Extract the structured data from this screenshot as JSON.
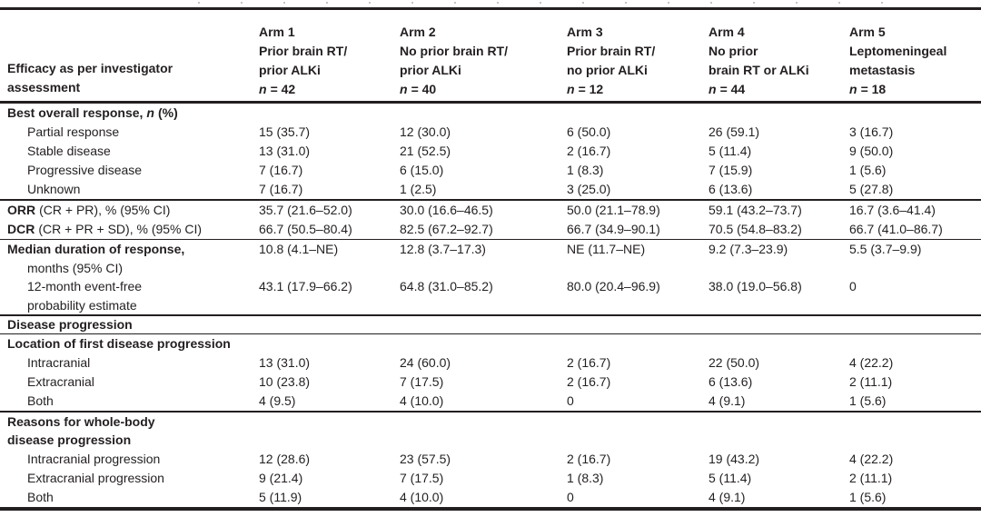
{
  "colors": {
    "text": "#231f20",
    "rule": "#231f20",
    "background": "#ffffff"
  },
  "table": {
    "header": {
      "row_label": {
        "line1": "Efficacy as per investigator",
        "line2": "assessment"
      },
      "arms": [
        {
          "title": "Arm 1",
          "desc1": "Prior brain RT/",
          "desc2": "prior ALKi",
          "n_var": "n",
          "n_eq": "= 42"
        },
        {
          "title": "Arm 2",
          "desc1": "No prior brain RT/",
          "desc2": "prior ALKi",
          "n_var": "n",
          "n_eq": "= 40"
        },
        {
          "title": "Arm 3",
          "desc1": "Prior brain RT/",
          "desc2": "no prior ALKi",
          "n_var": "n",
          "n_eq": "= 12"
        },
        {
          "title": "Arm 4",
          "desc1": "No prior",
          "desc2": "brain RT or ALKi",
          "n_var": "n",
          "n_eq": "= 44"
        },
        {
          "title": "Arm 5",
          "desc1": "Leptomeningeal",
          "desc2": "metastasis",
          "n_var": "n",
          "n_eq": "= 18"
        }
      ]
    },
    "rows": [
      {
        "label_pre": "Best overall response,",
        "label_italic": "n",
        "label_post": "(%)"
      },
      {
        "label": "Partial response",
        "cells": [
          "15 (35.7)",
          "12 (30.0)",
          "6 (50.0)",
          "26 (59.1)",
          "3 (16.7)"
        ]
      },
      {
        "label": "Stable disease",
        "cells": [
          "13 (31.0)",
          "21 (52.5)",
          "2 (16.7)",
          "5 (11.4)",
          "9 (50.0)"
        ]
      },
      {
        "label": "Progressive disease",
        "cells": [
          "7 (16.7)",
          "6 (15.0)",
          "1 (8.3)",
          "7 (15.9)",
          "1 (5.6)"
        ]
      },
      {
        "label": "Unknown",
        "cells": [
          "7 (16.7)",
          "1 (2.5)",
          "3 (25.0)",
          "6 (13.6)",
          "5 (27.8)"
        ]
      },
      {
        "label_bold": "ORR",
        "label_rest": "(CR + PR), % (95% CI)",
        "cells": [
          "35.7 (21.6–52.0)",
          "30.0 (16.6–46.5)",
          "50.0 (21.1–78.9)",
          "59.1 (43.2–73.7)",
          "16.7 (3.6–41.4)"
        ]
      },
      {
        "label_bold": "DCR",
        "label_rest": "(CR + PR + SD), % (95% CI)",
        "cells": [
          "66.7 (50.5–80.4)",
          "82.5 (67.2–92.7)",
          "66.7 (34.9–90.1)",
          "70.5 (54.8–83.2)",
          "66.7 (41.0–86.7)"
        ]
      },
      {
        "line1": "Median duration of response,",
        "line2": "months (95% CI)",
        "cells": [
          "10.8 (4.1–NE)",
          "12.8 (3.7–17.3)",
          "NE (11.7–NE)",
          "9.2 (7.3–23.9)",
          "5.5 (3.7–9.9)"
        ]
      },
      {
        "line1": "12-month event-free",
        "line2": "probability estimate",
        "cells": [
          "43.1 (17.9–66.2)",
          "64.8 (31.0–85.2)",
          "80.0 (20.4–96.9)",
          "38.0 (19.0–56.8)",
          "0"
        ]
      },
      {
        "label": "Disease progression"
      },
      {
        "label": "Location of first disease progression"
      },
      {
        "label": "Intracranial",
        "cells": [
          "13 (31.0)",
          "24 (60.0)",
          "2 (16.7)",
          "22 (50.0)",
          "4 (22.2)"
        ]
      },
      {
        "label": "Extracranial",
        "cells": [
          "10 (23.8)",
          "7 (17.5)",
          "2 (16.7)",
          "6 (13.6)",
          "2 (11.1)"
        ]
      },
      {
        "label": "Both",
        "cells": [
          "4 (9.5)",
          "4 (10.0)",
          "0",
          "4 (9.1)",
          "1 (5.6)"
        ]
      },
      {
        "line1": "Reasons for whole-body",
        "line2": "disease progression"
      },
      {
        "label": "Intracranial progression",
        "cells": [
          "12 (28.6)",
          "23 (57.5)",
          "2 (16.7)",
          "19 (43.2)",
          "4 (22.2)"
        ]
      },
      {
        "label": "Extracranial progression",
        "cells": [
          "9 (21.4)",
          "7 (17.5)",
          "1 (8.3)",
          "5 (11.4)",
          "2 (11.1)"
        ]
      },
      {
        "label": "Both",
        "cells": [
          "5 (11.9)",
          "4 (10.0)",
          "0",
          "4 (9.1)",
          "1 (5.6)"
        ]
      }
    ]
  }
}
